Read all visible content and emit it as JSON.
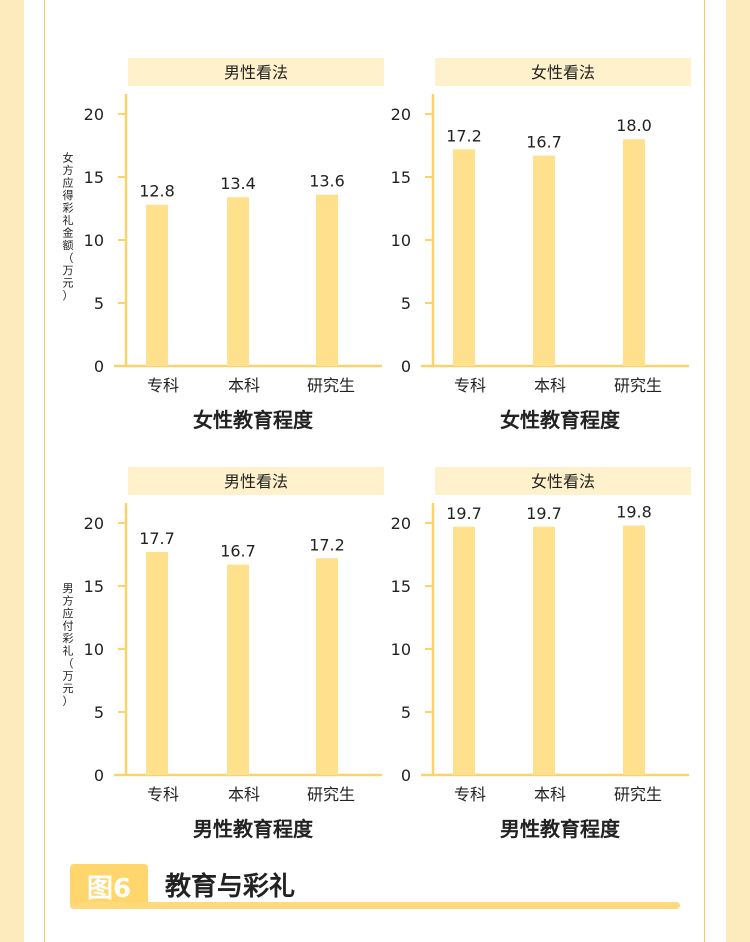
{
  "colors": {
    "bar": "#ffe08c",
    "axis": "#fbd36b",
    "header_bg": "#fff1cc",
    "text": "#222222",
    "accent": "#ffd66b"
  },
  "chart_data": [
    {
      "type": "bar",
      "title": "男性看法",
      "xlabel": "女性教育程度",
      "ylabel": "女方应得彩礼金额（万元）",
      "categories": [
        "专科",
        "本科",
        "研究生"
      ],
      "values": [
        12.8,
        13.4,
        13.6
      ],
      "yticks": [
        "0",
        "5",
        "10",
        "15",
        "20"
      ],
      "ylim": [
        0,
        21.5
      ],
      "grid": false
    },
    {
      "type": "bar",
      "title": "女性看法",
      "xlabel": "女性教育程度",
      "ylabel": "",
      "categories": [
        "专科",
        "本科",
        "研究生"
      ],
      "values": [
        17.2,
        16.7,
        18.0
      ],
      "yticks": [
        "0",
        "5",
        "10",
        "15",
        "20"
      ],
      "ylim": [
        0,
        21.5
      ],
      "grid": false
    },
    {
      "type": "bar",
      "title": "男性看法",
      "xlabel": "男性教育程度",
      "ylabel": "男方应付彩礼（万元）",
      "categories": [
        "专科",
        "本科",
        "研究生"
      ],
      "values": [
        17.7,
        16.7,
        17.2
      ],
      "yticks": [
        "0",
        "5",
        "10",
        "15",
        "20"
      ],
      "ylim": [
        0,
        21.5
      ],
      "grid": false
    },
    {
      "type": "bar",
      "title": "女性看法",
      "xlabel": "男性教育程度",
      "ylabel": "",
      "categories": [
        "专科",
        "本科",
        "研究生"
      ],
      "values": [
        19.7,
        19.7,
        19.8
      ],
      "yticks": [
        "0",
        "5",
        "10",
        "15",
        "20"
      ],
      "ylim": [
        0,
        21.5
      ],
      "grid": false
    }
  ],
  "figure": {
    "badge": "图6",
    "title": "教育与彩礼"
  }
}
